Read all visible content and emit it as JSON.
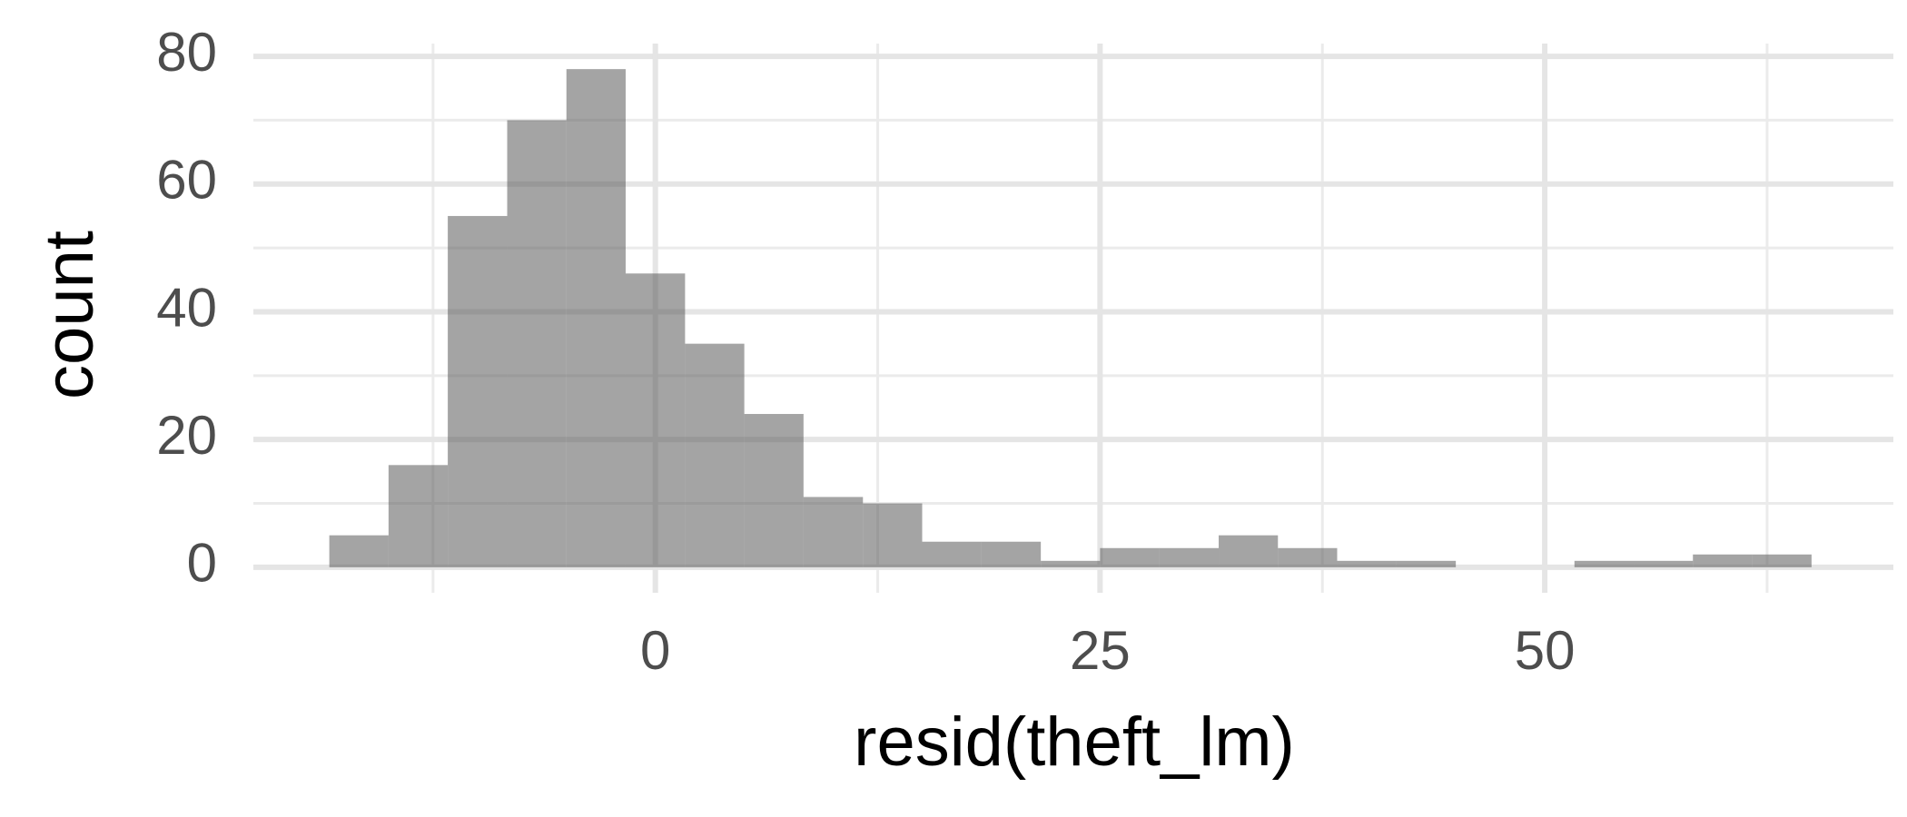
{
  "chart_data": {
    "type": "histogram",
    "x_label": "resid(theft_lm)",
    "y_label": "count",
    "bins": [
      -18.33,
      -15,
      -11.67,
      -8.33,
      -5,
      -1.67,
      1.67,
      5,
      8.33,
      11.67,
      15,
      18.33,
      21.67,
      25,
      28.33,
      31.67,
      35,
      38.33,
      41.67,
      45,
      48.33,
      51.67,
      55,
      58.33,
      61.67,
      65
    ],
    "counts": [
      5,
      16,
      55,
      70,
      78,
      46,
      35,
      24,
      11,
      10,
      4,
      4,
      1,
      3,
      3,
      5,
      3,
      1,
      1,
      0,
      0,
      1,
      1,
      2,
      2
    ],
    "color": "#595959",
    "xlim": [
      -22.6,
      69.6
    ],
    "xticks": [
      0,
      25,
      50
    ],
    "x_minor_ticks": [
      -12.5,
      12.5,
      37.5,
      62.5
    ],
    "ylim": [
      -4,
      82
    ],
    "yticks": [
      0,
      20,
      40,
      60,
      80
    ],
    "y_minor_ticks": [
      10,
      30,
      50,
      70
    ],
    "grid": true
  }
}
